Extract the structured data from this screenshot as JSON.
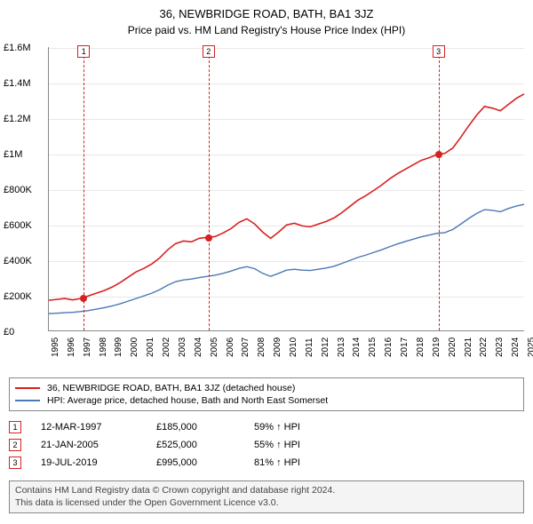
{
  "title": "36, NEWBRIDGE ROAD, BATH, BA1 3JZ",
  "subtitle": "Price paid vs. HM Land Registry's House Price Index (HPI)",
  "chart": {
    "type": "line",
    "background_color": "#ffffff",
    "grid_color": "#e8e8e8",
    "axis_color": "#888888",
    "y": {
      "min": 0,
      "max": 1600000,
      "step": 200000,
      "labels": [
        "£0",
        "£200K",
        "£400K",
        "£600K",
        "£800K",
        "£1M",
        "£1.2M",
        "£1.4M",
        "£1.6M"
      ],
      "fontsize": 11
    },
    "x": {
      "min": 1995,
      "max": 2025,
      "labels": [
        "1995",
        "1996",
        "1997",
        "1998",
        "1999",
        "2000",
        "2001",
        "2002",
        "2003",
        "2004",
        "2005",
        "2006",
        "2007",
        "2008",
        "2009",
        "2010",
        "2011",
        "2012",
        "2013",
        "2014",
        "2015",
        "2016",
        "2017",
        "2018",
        "2019",
        "2020",
        "2021",
        "2022",
        "2023",
        "2024",
        "2025"
      ],
      "fontsize": 10
    },
    "series": [
      {
        "name": "property",
        "color": "#d82020",
        "line_width": 1.6,
        "points": [
          [
            1995,
            170000
          ],
          [
            1995.5,
            175000
          ],
          [
            1996,
            180000
          ],
          [
            1996.5,
            172000
          ],
          [
            1997,
            180000
          ],
          [
            1997.2,
            185000
          ],
          [
            1997.5,
            195000
          ],
          [
            1998,
            210000
          ],
          [
            1998.5,
            225000
          ],
          [
            1999,
            245000
          ],
          [
            1999.5,
            270000
          ],
          [
            2000,
            300000
          ],
          [
            2000.5,
            330000
          ],
          [
            2001,
            350000
          ],
          [
            2001.5,
            375000
          ],
          [
            2002,
            410000
          ],
          [
            2002.5,
            455000
          ],
          [
            2003,
            490000
          ],
          [
            2003.5,
            505000
          ],
          [
            2004,
            500000
          ],
          [
            2004.5,
            520000
          ],
          [
            2005,
            525000
          ],
          [
            2005.5,
            530000
          ],
          [
            2006,
            550000
          ],
          [
            2006.5,
            575000
          ],
          [
            2007,
            610000
          ],
          [
            2007.5,
            630000
          ],
          [
            2008,
            600000
          ],
          [
            2008.5,
            555000
          ],
          [
            2009,
            520000
          ],
          [
            2009.5,
            555000
          ],
          [
            2010,
            595000
          ],
          [
            2010.5,
            605000
          ],
          [
            2011,
            590000
          ],
          [
            2011.5,
            585000
          ],
          [
            2012,
            600000
          ],
          [
            2012.5,
            615000
          ],
          [
            2013,
            635000
          ],
          [
            2013.5,
            665000
          ],
          [
            2014,
            700000
          ],
          [
            2014.5,
            735000
          ],
          [
            2015,
            760000
          ],
          [
            2015.5,
            790000
          ],
          [
            2016,
            820000
          ],
          [
            2016.5,
            855000
          ],
          [
            2017,
            885000
          ],
          [
            2017.5,
            910000
          ],
          [
            2018,
            935000
          ],
          [
            2018.5,
            960000
          ],
          [
            2019,
            975000
          ],
          [
            2019.55,
            995000
          ],
          [
            2020,
            1000000
          ],
          [
            2020.5,
            1030000
          ],
          [
            2021,
            1090000
          ],
          [
            2021.5,
            1155000
          ],
          [
            2022,
            1215000
          ],
          [
            2022.5,
            1265000
          ],
          [
            2023,
            1255000
          ],
          [
            2023.5,
            1240000
          ],
          [
            2024,
            1275000
          ],
          [
            2024.5,
            1310000
          ],
          [
            2025,
            1335000
          ]
        ]
      },
      {
        "name": "hpi",
        "color": "#4a78b5",
        "line_width": 1.4,
        "points": [
          [
            1995,
            95000
          ],
          [
            1995.5,
            97000
          ],
          [
            1996,
            100000
          ],
          [
            1996.5,
            102000
          ],
          [
            1997,
            106000
          ],
          [
            1997.5,
            112000
          ],
          [
            1998,
            120000
          ],
          [
            1998.5,
            128000
          ],
          [
            1999,
            138000
          ],
          [
            1999.5,
            150000
          ],
          [
            2000,
            165000
          ],
          [
            2000.5,
            180000
          ],
          [
            2001,
            195000
          ],
          [
            2001.5,
            210000
          ],
          [
            2002,
            230000
          ],
          [
            2002.5,
            255000
          ],
          [
            2003,
            275000
          ],
          [
            2003.5,
            285000
          ],
          [
            2004,
            290000
          ],
          [
            2004.5,
            298000
          ],
          [
            2005,
            305000
          ],
          [
            2005.5,
            312000
          ],
          [
            2006,
            322000
          ],
          [
            2006.5,
            335000
          ],
          [
            2007,
            350000
          ],
          [
            2007.5,
            360000
          ],
          [
            2008,
            348000
          ],
          [
            2008.5,
            322000
          ],
          [
            2009,
            305000
          ],
          [
            2009.5,
            322000
          ],
          [
            2010,
            340000
          ],
          [
            2010.5,
            345000
          ],
          [
            2011,
            340000
          ],
          [
            2011.5,
            338000
          ],
          [
            2012,
            345000
          ],
          [
            2012.5,
            352000
          ],
          [
            2013,
            362000
          ],
          [
            2013.5,
            378000
          ],
          [
            2014,
            395000
          ],
          [
            2014.5,
            412000
          ],
          [
            2015,
            425000
          ],
          [
            2015.5,
            440000
          ],
          [
            2016,
            455000
          ],
          [
            2016.5,
            472000
          ],
          [
            2017,
            488000
          ],
          [
            2017.5,
            502000
          ],
          [
            2018,
            515000
          ],
          [
            2018.5,
            528000
          ],
          [
            2019,
            538000
          ],
          [
            2019.5,
            548000
          ],
          [
            2020,
            552000
          ],
          [
            2020.5,
            570000
          ],
          [
            2021,
            600000
          ],
          [
            2021.5,
            632000
          ],
          [
            2022,
            660000
          ],
          [
            2022.5,
            682000
          ],
          [
            2023,
            678000
          ],
          [
            2023.5,
            670000
          ],
          [
            2024,
            688000
          ],
          [
            2024.5,
            702000
          ],
          [
            2025,
            712000
          ]
        ]
      }
    ],
    "markers": [
      {
        "num": "1",
        "year": 1997.2,
        "value": 185000,
        "color": "#d82020"
      },
      {
        "num": "2",
        "year": 2005.06,
        "value": 525000,
        "color": "#d82020"
      },
      {
        "num": "3",
        "year": 2019.55,
        "value": 995000,
        "color": "#d82020"
      }
    ]
  },
  "legend": {
    "border_color": "#888888",
    "items": [
      {
        "color": "#d82020",
        "text": "36, NEWBRIDGE ROAD, BATH, BA1 3JZ (detached house)"
      },
      {
        "color": "#4a78b5",
        "text": "HPI: Average price, detached house, Bath and North East Somerset"
      }
    ]
  },
  "sales": [
    {
      "num": "1",
      "color": "#d82020",
      "date": "12-MAR-1997",
      "price": "£185,000",
      "hpi": "59% ↑ HPI"
    },
    {
      "num": "2",
      "color": "#d82020",
      "date": "21-JAN-2005",
      "price": "£525,000",
      "hpi": "55% ↑ HPI"
    },
    {
      "num": "3",
      "color": "#d82020",
      "date": "19-JUL-2019",
      "price": "£995,000",
      "hpi": "81% ↑ HPI"
    }
  ],
  "footer": {
    "line1": "Contains HM Land Registry data © Crown copyright and database right 2024.",
    "line2": "This data is licensed under the Open Government Licence v3.0.",
    "background_color": "#f4f4f4",
    "border_color": "#888888"
  }
}
